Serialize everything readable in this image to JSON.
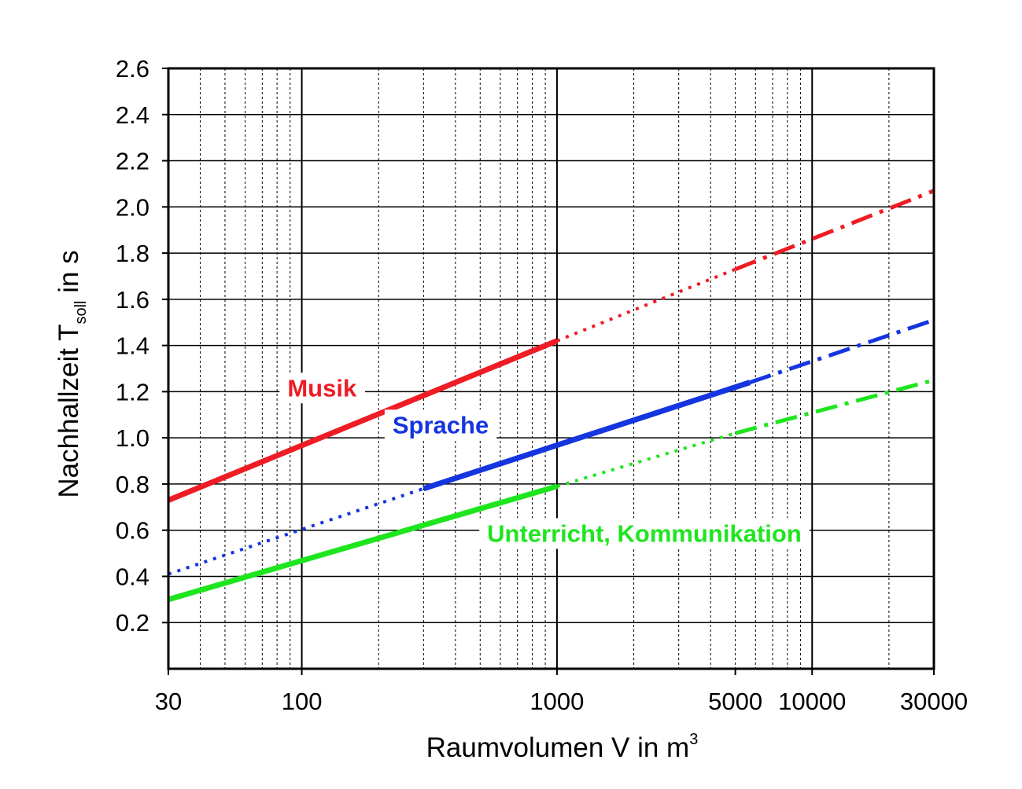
{
  "chart_data": {
    "type": "line",
    "title": "",
    "xlabel": {
      "text": "Raumvolumen V in m",
      "superscript": "3"
    },
    "ylabel": {
      "prefix": "Nachhallzeit T",
      "subscript": "soll",
      "suffix": " in s"
    },
    "x_scale": "log",
    "xlim": [
      30,
      30000
    ],
    "ylim": [
      0,
      2.6
    ],
    "x_ticks": [
      30,
      100,
      1000,
      5000,
      10000,
      30000
    ],
    "x_tick_labels": [
      "30",
      "100",
      "1000",
      "5000",
      "10000",
      "30000"
    ],
    "y_ticks": [
      0.2,
      0.4,
      0.6,
      0.8,
      1.0,
      1.2,
      1.4,
      1.6,
      1.8,
      2.0,
      2.2,
      2.4,
      2.6
    ],
    "y_tick_labels": [
      "0.2",
      "0.4",
      "0.6",
      "0.8",
      "1.0",
      "1.2",
      "1.4",
      "1.6",
      "1.8",
      "2.0",
      "2.2",
      "2.4",
      "2.6"
    ],
    "x_grid_major": [
      100,
      1000,
      10000
    ],
    "x_grid_minor": [
      40,
      50,
      60,
      70,
      80,
      90,
      200,
      300,
      400,
      500,
      600,
      700,
      800,
      900,
      2000,
      3000,
      4000,
      5000,
      6000,
      7000,
      8000,
      9000,
      20000
    ],
    "y_grid": [
      0.2,
      0.4,
      0.6,
      0.8,
      1.0,
      1.2,
      1.4,
      1.6,
      1.8,
      2.0,
      2.2,
      2.4
    ],
    "grid": true,
    "series": [
      {
        "name": "Musik",
        "color": "#ee1c24",
        "label_at": [
          120,
          1.18
        ],
        "segments": [
          {
            "style": "solid",
            "x": [
              30,
              1000
            ],
            "y": [
              0.73,
              1.42
            ]
          },
          {
            "style": "dotted",
            "x": [
              1000,
              5000
            ],
            "y": [
              1.42,
              1.73
            ]
          },
          {
            "style": "dashdot",
            "x": [
              5000,
              30000
            ],
            "y": [
              1.73,
              2.07
            ]
          }
        ]
      },
      {
        "name": "Sprache",
        "color": "#1535e0",
        "label_at": [
          350,
          1.02
        ],
        "segments": [
          {
            "style": "dotted",
            "x": [
              30,
              300
            ],
            "y": [
              0.41,
              0.78
            ]
          },
          {
            "style": "solid",
            "x": [
              300,
              5700
            ],
            "y": [
              0.78,
              1.24
            ]
          },
          {
            "style": "dashdot",
            "x": [
              5700,
              30000
            ],
            "y": [
              1.24,
              1.51
            ]
          }
        ]
      },
      {
        "name": "Unterricht, Kommunikation",
        "color": "#1fe51f",
        "label_at": [
          2200,
          0.55
        ],
        "segments": [
          {
            "style": "solid",
            "x": [
              30,
              1000
            ],
            "y": [
              0.3,
              0.79
            ]
          },
          {
            "style": "dotted",
            "x": [
              1000,
              5000
            ],
            "y": [
              0.79,
              1.02
            ]
          },
          {
            "style": "dashdot",
            "x": [
              5000,
              30000
            ],
            "y": [
              1.02,
              1.25
            ]
          }
        ]
      }
    ]
  }
}
